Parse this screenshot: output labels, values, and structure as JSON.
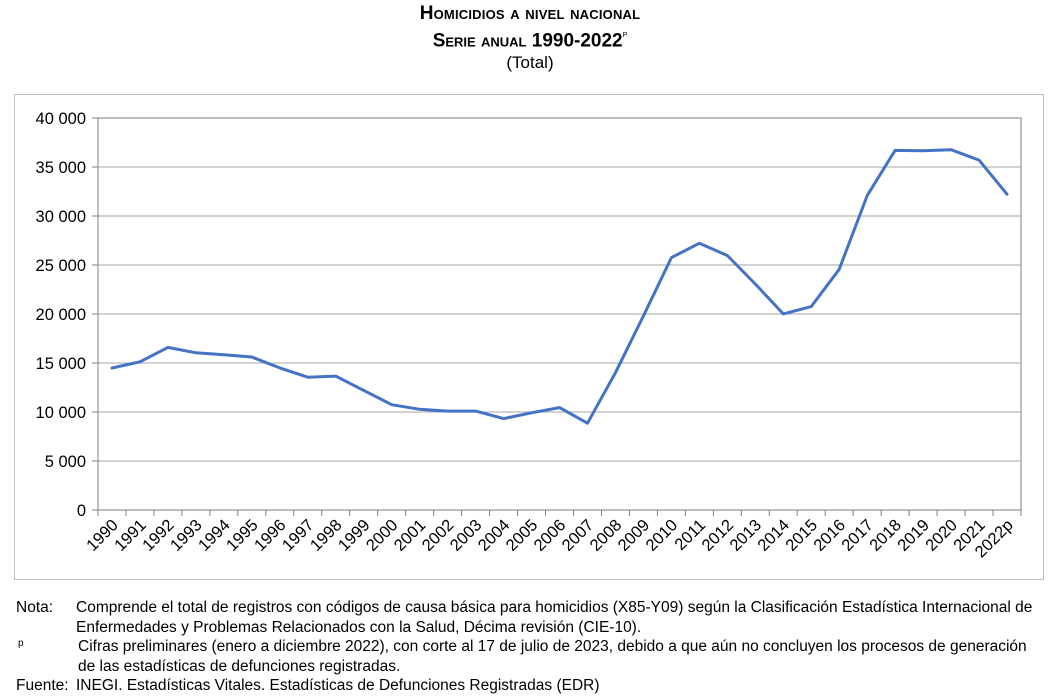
{
  "header": {
    "title": "Homicidios a nivel nacional",
    "subtitle_text": "Serie anual 1990-2022",
    "subtitle_sup": "p",
    "unit": "(Total)"
  },
  "chart_data": {
    "type": "line",
    "title": "Homicidios a nivel nacional",
    "subtitle": "Serie anual 1990-2022p",
    "ylabel": "",
    "xlabel": "",
    "ylim": [
      0,
      40000
    ],
    "y_ticks": [
      0,
      5000,
      10000,
      15000,
      20000,
      25000,
      30000,
      35000,
      40000
    ],
    "y_tick_labels": [
      "0",
      "5 000",
      "10 000",
      "15 000",
      "20 000",
      "25 000",
      "30 000",
      "35 000",
      "40 000"
    ],
    "grid": true,
    "legend": "none",
    "line_color": "#4472c4",
    "categories": [
      "1990",
      "1991",
      "1992",
      "1993",
      "1994",
      "1995",
      "1996",
      "1997",
      "1998",
      "1999",
      "2000",
      "2001",
      "2002",
      "2003",
      "2004",
      "2005",
      "2006",
      "2007",
      "2008",
      "2009",
      "2010",
      "2011",
      "2012",
      "2013",
      "2014",
      "2015",
      "2016",
      "2017",
      "2018",
      "2019",
      "2020",
      "2021",
      "2022p"
    ],
    "values": [
      14493,
      15125,
      16594,
      16040,
      15839,
      15612,
      14500,
      13550,
      13660,
      12200,
      10740,
      10280,
      10090,
      10090,
      9330,
      9920,
      10450,
      8860,
      14000,
      19800,
      25760,
      27210,
      25970,
      23060,
      20010,
      20760,
      24560,
      32080,
      36690,
      36660,
      36770,
      35700,
      32220
    ]
  },
  "notes": [
    {
      "label": "Nota:",
      "text": "Comprende el total de registros con códigos de causa básica para homicidios (X85-Y09) según la Clasificación Estadística Internacional de Enfermedades y Problemas Relacionados con la Salud, Décima revisión (CIE-10)."
    },
    {
      "label": "p",
      "text": "Cifras preliminares (enero a diciembre 2022), con corte al 17 de julio de 2023, debido a que aún no concluyen los procesos de generación de las estadísticas de defunciones registradas."
    },
    {
      "label": "Fuente:",
      "text": "INEGI. Estadísticas Vitales. Estadísticas de Defunciones Registradas (EDR)"
    }
  ]
}
